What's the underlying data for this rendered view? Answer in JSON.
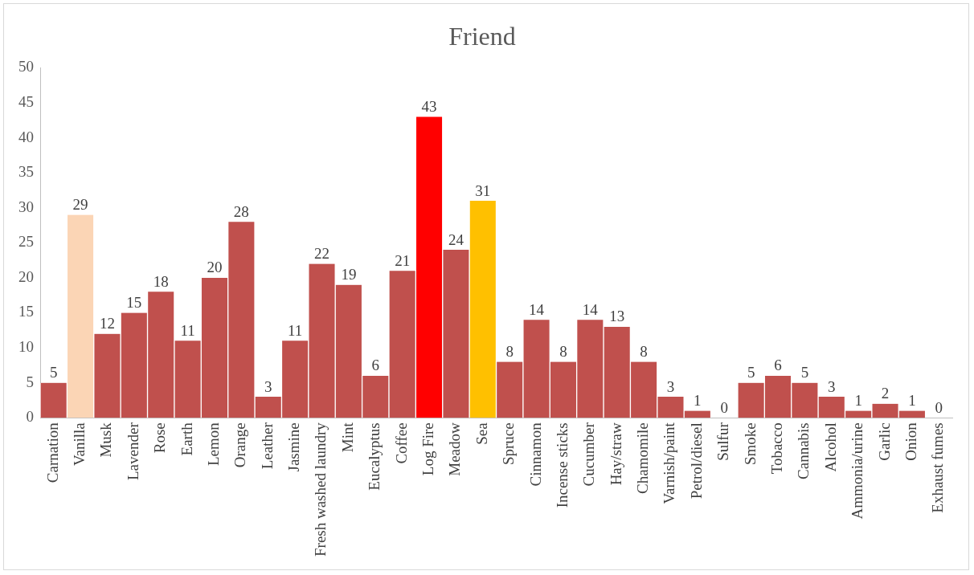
{
  "chart_data": {
    "type": "bar",
    "title": "Friend",
    "categories": [
      "Carnation",
      "Vanilla",
      "Musk",
      "Lavender",
      "Rose",
      "Earth",
      "Lemon",
      "Orange",
      "Leather",
      "Jasmine",
      "Fresh washed laundry",
      "Mint",
      "Eucalyptus",
      "Coffee",
      "Log Fire",
      "Meadow",
      "Sea",
      "Spruce",
      "Cinnamon",
      "Incense sticks",
      "Cucumber",
      "Hay/straw",
      "Chamomile",
      "Varnish/paint",
      "Petrol/diesel",
      "Sulfur",
      "Smoke",
      "Tobacco",
      "Cannabis",
      "Alcohol",
      "Ammonia/urine",
      "Garlic",
      "Onion",
      "Exhaust fumes"
    ],
    "values": [
      5,
      29,
      12,
      15,
      18,
      11,
      20,
      28,
      3,
      11,
      22,
      19,
      6,
      21,
      43,
      24,
      31,
      8,
      14,
      8,
      14,
      13,
      8,
      3,
      1,
      0,
      5,
      6,
      5,
      3,
      1,
      2,
      1,
      0
    ],
    "colors": [
      "#c0504d",
      "#fbd5b5",
      "#c0504d",
      "#c0504d",
      "#c0504d",
      "#c0504d",
      "#c0504d",
      "#c0504d",
      "#c0504d",
      "#c0504d",
      "#c0504d",
      "#c0504d",
      "#c0504d",
      "#c0504d",
      "#ff0000",
      "#c0504d",
      "#ffc000",
      "#c0504d",
      "#c0504d",
      "#c0504d",
      "#c0504d",
      "#c0504d",
      "#c0504d",
      "#c0504d",
      "#c0504d",
      "#c0504d",
      "#c0504d",
      "#c0504d",
      "#c0504d",
      "#c0504d",
      "#c0504d",
      "#c0504d",
      "#c0504d",
      "#c0504d"
    ],
    "ylim": [
      0,
      50
    ],
    "yticks": [
      0,
      5,
      10,
      15,
      20,
      25,
      30,
      35,
      40,
      45,
      50
    ],
    "grid": false,
    "legend": false,
    "data_labels": true
  }
}
